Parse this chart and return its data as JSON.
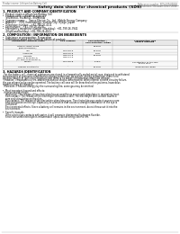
{
  "title": "Safety data sheet for chemical products (SDS)",
  "header_left": "Product name: Lithium Ion Battery Cell",
  "header_right_1": "Reference number: SDS-049-00018",
  "header_right_2": "Establishment / Revision: Dec.7.2016",
  "section1_title": "1. PRODUCT AND COMPANY IDENTIFICATION",
  "section1_lines": [
    "•  Product name: Lithium Ion Battery Cell",
    "•  Product code: Cylindrical-type cell",
    "    SV18650U, SV18650L, SV18650A",
    "•  Company name:     Sanyo Electric Co., Ltd., Mobile Energy Company",
    "•  Address:    2001 Kamonomiya, Sumoto City, Hyogo, Japan",
    "•  Telephone number:   +81-799-26-4111",
    "•  Fax number:   +81-799-26-4129",
    "•  Emergency telephone number (Weekday): +81-799-26-3942",
    "    (Night and holiday): +81-799-26-4101"
  ],
  "section2_title": "2. COMPOSITION / INFORMATION ON INGREDIENTS",
  "section2_intro": "•  Substance or preparation: Preparation",
  "section2_sub": "•  Information about the chemical nature of product:",
  "table_headers": [
    "Component chemical name",
    "CAS number",
    "Concentration /\nConcentration range",
    "Classification and\nhazard labeling"
  ],
  "table_rows": [
    [
      "Lithium cobalt oxide\n(LiMnxCoyNizO2)",
      "-",
      "30-50%",
      ""
    ],
    [
      "Iron",
      "7439-89-6",
      "15-25%",
      ""
    ],
    [
      "Aluminum",
      "7429-90-5",
      "2-5%",
      ""
    ],
    [
      "Graphite\n(Kind of graphite-1)\n(All kind of graphite-1)",
      "7782-42-5\n7782-44-0",
      "10-25%",
      ""
    ],
    [
      "Copper",
      "7440-50-8",
      "5-15%",
      "Sensitization of the skin\ngroup No.2"
    ],
    [
      "Organic electrolyte",
      "-",
      "10-20%",
      "Inflammable liquid"
    ]
  ],
  "section3_title": "3. HAZARDS IDENTIFICATION",
  "section3_lines": [
    "  For the battery cell, chemical substances are stored in a hermetically sealed metal case, designed to withstand",
    "temperatures or pressures-combinations during normal use. As a result, during normal use, there is no",
    "physical danger of ignition or explosion and there is no danger of hazardous materials leakage.",
    "  However, if exposed to a fire, added mechanical shocks, decomposed, when internal electric circuitry failure,",
    "the gas release valve can be operated. The battery cell case will be breached or fire-patterns, hazardous",
    "materials may be released.",
    "  Moreover, if heated strongly by the surrounding fire, some gas may be emitted.",
    "",
    "•  Most important hazard and effects:",
    "  Human health effects:",
    "    Inhalation: The release of the electrolyte has an anesthesia action and stimulates in respiratory tract.",
    "    Skin contact: The release of the electrolyte stimulates a skin. The electrolyte skin contact causes a",
    "    sore and stimulation on the skin.",
    "    Eye contact: The release of the electrolyte stimulates eyes. The electrolyte eye contact causes a sore",
    "    and stimulation on the eye. Especially, a substance that causes a strong inflammation of the eye is",
    "    contained.",
    "    Environmental effects: Since a battery cell remains in the environment, do not throw out it into the",
    "    environment.",
    "",
    "•  Specific hazards:",
    "    If the electrolyte contacts with water, it will generate detrimental hydrogen fluoride.",
    "    Since the used electrolyte is inflammable liquid, do not bring close to fire."
  ],
  "bg_color": "#ffffff",
  "text_color": "#000000",
  "gray_text": "#666666",
  "table_border_color": "#aaaaaa",
  "table_header_bg": "#e8e8e8"
}
